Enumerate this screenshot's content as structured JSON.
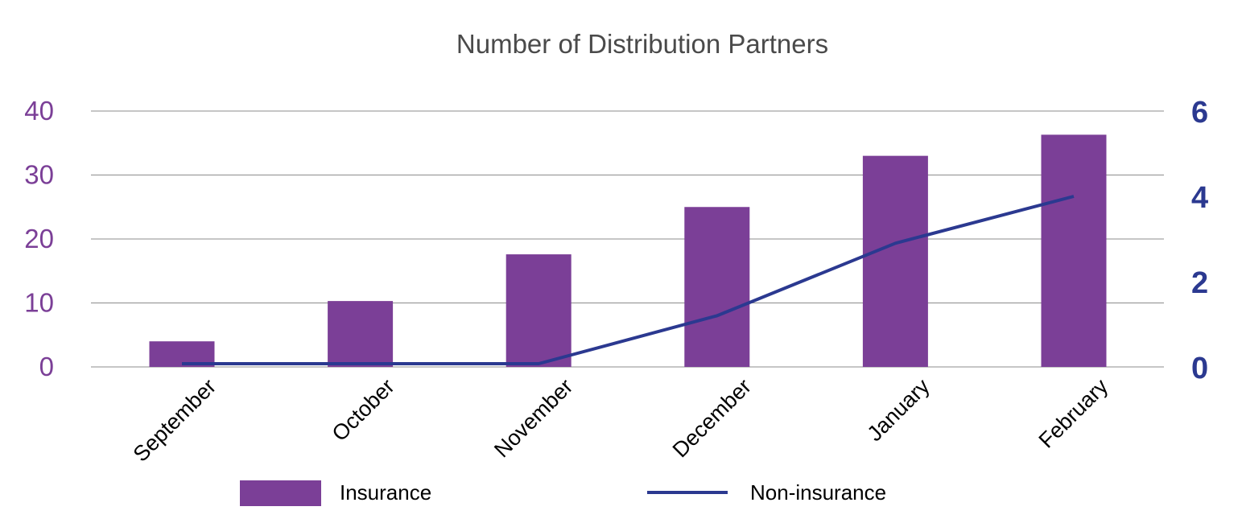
{
  "chart_data": {
    "type": "bar",
    "title": "Number of Distribution Partners",
    "categories": [
      "September",
      "October",
      "November",
      "December",
      "January",
      "February"
    ],
    "series": [
      {
        "name": "Insurance",
        "type": "bar",
        "axis": "left",
        "color": "#7b3f97",
        "values": [
          4,
          10.3,
          17.6,
          25,
          33,
          36.3
        ]
      },
      {
        "name": "Non-insurance",
        "type": "line",
        "axis": "right",
        "color": "#2b3990",
        "values": [
          0,
          0,
          0,
          1.2,
          2.9,
          4
        ]
      }
    ],
    "left_axis": {
      "ylim": [
        0,
        40
      ],
      "ticks": [
        "0",
        "10",
        "20",
        "30",
        "40"
      ]
    },
    "right_axis": {
      "ylim": [
        0,
        6
      ],
      "ticks": [
        "0",
        "2",
        "4",
        "6"
      ]
    },
    "legend_position": "bottom",
    "grid": true
  }
}
